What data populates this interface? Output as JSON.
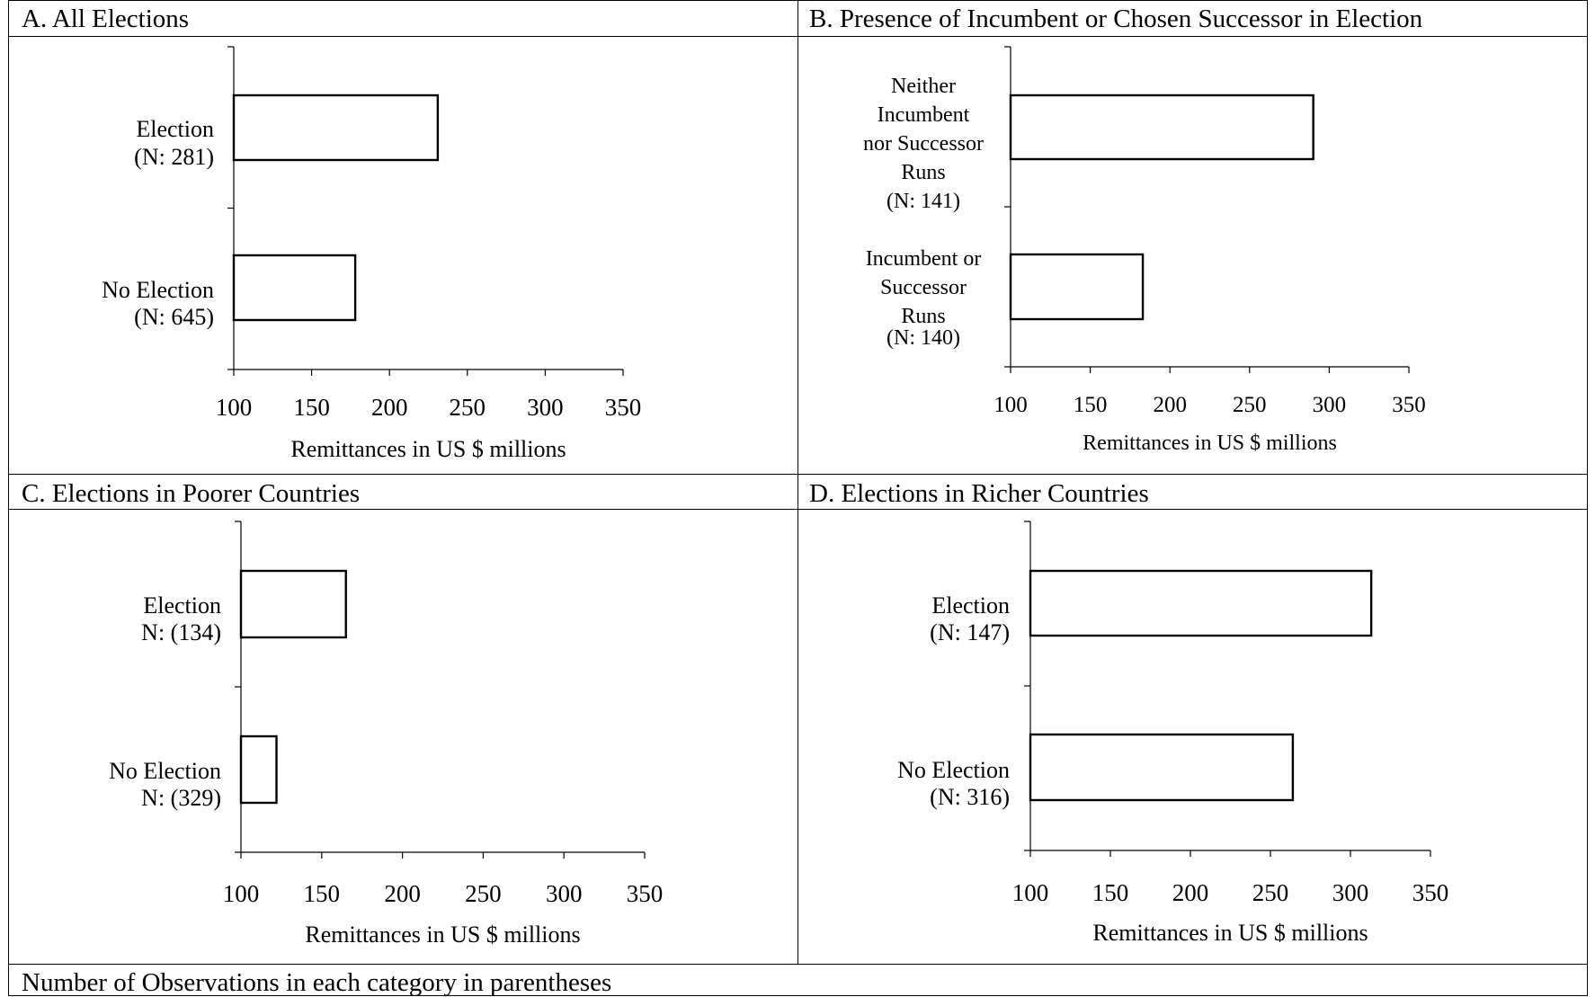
{
  "footnote": "Number of Observations in each category in parentheses",
  "panels": [
    {
      "title": "A. All Elections",
      "xlabel": "Remittances in US $ millions"
    },
    {
      "title": "B. Presence of Incumbent or Chosen Successor in Election",
      "xlabel": "Remittances in US $ millions"
    },
    {
      "title": "C. Elections in Poorer Countries",
      "xlabel": "Remittances in US $ millions"
    },
    {
      "title": "D. Elections in Richer Countries",
      "xlabel": "Remittances in US $ millions"
    }
  ],
  "chart_data": [
    {
      "type": "bar",
      "orientation": "horizontal",
      "title": "A. All Elections",
      "xlabel": "Remittances in US $ millions",
      "xlim": [
        100,
        350
      ],
      "xticks": [
        100,
        150,
        200,
        250,
        300,
        350
      ],
      "categories": [
        [
          "Election",
          "(N: 281)"
        ],
        [
          "No Election",
          "(N: 645)"
        ]
      ],
      "values": [
        231,
        178
      ],
      "grid": false
    },
    {
      "type": "bar",
      "orientation": "horizontal",
      "title": "B. Presence of Incumbent or Chosen Successor in Election",
      "xlabel": "Remittances in US $ millions",
      "xlim": [
        100,
        350
      ],
      "xticks": [
        100,
        150,
        200,
        250,
        300,
        350
      ],
      "categories": [
        [
          "Neither",
          "Incumbent",
          "nor Successor",
          "Runs",
          "(N: 141)"
        ],
        [
          "Incumbent or",
          "Successor",
          "Runs",
          "(N: 140)"
        ]
      ],
      "values": [
        290,
        183
      ],
      "grid": false
    },
    {
      "type": "bar",
      "orientation": "horizontal",
      "title": "C. Elections in Poorer Countries",
      "xlabel": "Remittances in US $ millions",
      "xlim": [
        100,
        350
      ],
      "xticks": [
        100,
        150,
        200,
        250,
        300,
        350
      ],
      "categories": [
        [
          "Election",
          "N: (134)"
        ],
        [
          "No Election",
          "N: (329)"
        ]
      ],
      "values": [
        165,
        122
      ],
      "grid": false
    },
    {
      "type": "bar",
      "orientation": "horizontal",
      "title": "D. Elections in Richer Countries",
      "xlabel": "Remittances in US $ millions",
      "xlim": [
        100,
        350
      ],
      "xticks": [
        100,
        150,
        200,
        250,
        300,
        350
      ],
      "categories": [
        [
          "Election",
          "(N: 147)"
        ],
        [
          "No Election",
          "(N: 316)"
        ]
      ],
      "values": [
        313,
        264
      ],
      "grid": false
    }
  ]
}
